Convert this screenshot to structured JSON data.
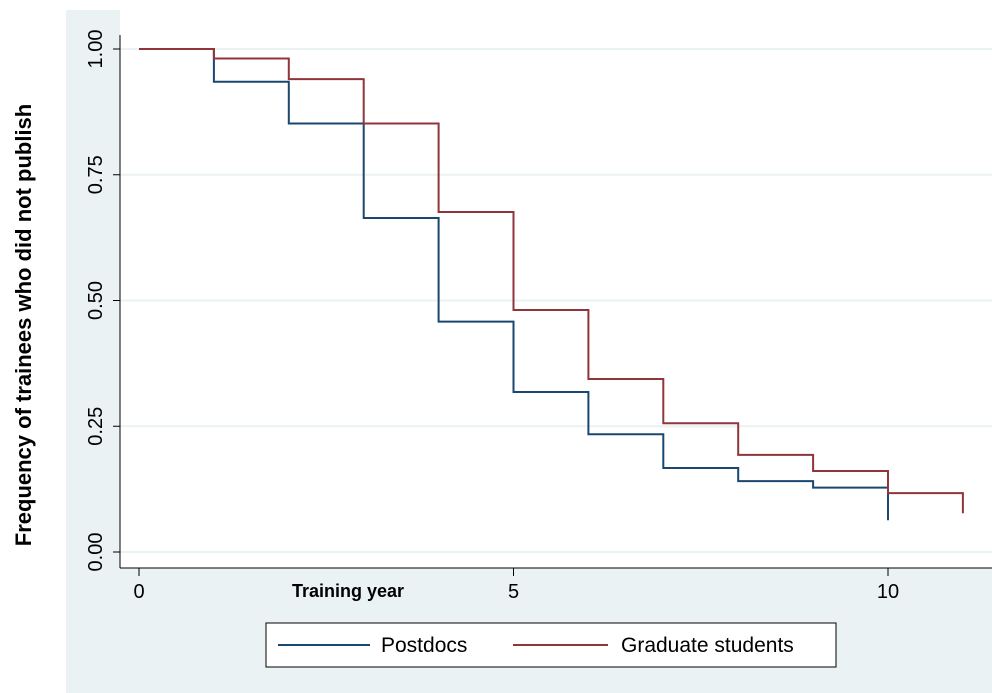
{
  "chart_data": {
    "type": "line",
    "step": true,
    "xlabel": "Training year",
    "ylabel": "Frequency of trainees who did not publish",
    "xlim": [
      0,
      11
    ],
    "ylim": [
      0,
      1
    ],
    "x_ticks": [
      {
        "value": 0,
        "label": "0"
      },
      {
        "value": 5,
        "label": "5"
      },
      {
        "value": 10,
        "label": "10"
      }
    ],
    "y_ticks": [
      {
        "value": 0,
        "label": "0.00"
      },
      {
        "value": 0.25,
        "label": "0.25"
      },
      {
        "value": 0.5,
        "label": "0.50"
      },
      {
        "value": 0.75,
        "label": "0.75"
      },
      {
        "value": 1,
        "label": "1.00"
      }
    ],
    "grid": "horizontal",
    "legend_position": "bottom",
    "series": [
      {
        "name": "Postdocs",
        "color": "#1a476f",
        "points": [
          [
            0,
            1.0
          ],
          [
            1,
            0.935
          ],
          [
            2,
            0.852
          ],
          [
            3,
            0.664
          ],
          [
            4,
            0.458
          ],
          [
            5,
            0.318
          ],
          [
            6,
            0.234
          ],
          [
            7,
            0.167
          ],
          [
            8,
            0.141
          ],
          [
            9,
            0.128
          ],
          [
            10,
            0.063
          ]
        ]
      },
      {
        "name": "Graduate students",
        "color": "#90353b",
        "points": [
          [
            0,
            1.0
          ],
          [
            1,
            0.981
          ],
          [
            2,
            0.94
          ],
          [
            3,
            0.852
          ],
          [
            4,
            0.676
          ],
          [
            5,
            0.481
          ],
          [
            6,
            0.344
          ],
          [
            7,
            0.256
          ],
          [
            8,
            0.193
          ],
          [
            9,
            0.161
          ],
          [
            10,
            0.117
          ],
          [
            11,
            0.077
          ]
        ]
      }
    ]
  },
  "colors": {
    "outer_background": "#eaf2f3",
    "plot_background": "#ffffff",
    "gridline": "#eaf2f3",
    "axis": "#000000"
  }
}
